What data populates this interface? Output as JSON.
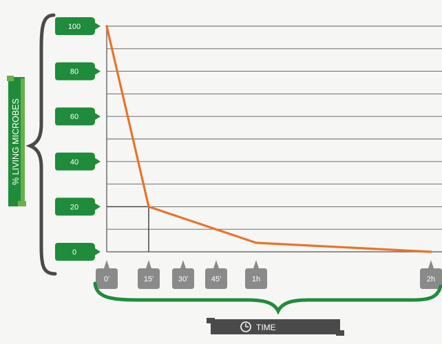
{
  "chart_data": {
    "type": "line",
    "xlabel": "TIME",
    "ylabel": "% LIVING MICROBES",
    "y_ticks": [
      "100",
      "80",
      "60",
      "40",
      "20",
      "0"
    ],
    "x_ticks": [
      "0'",
      "15'",
      "30'",
      "45'",
      "1h",
      "2h"
    ],
    "x_tick_minutes": [
      0,
      15,
      30,
      45,
      60,
      120
    ],
    "ylim": [
      0,
      100
    ],
    "xlim": [
      0,
      120
    ],
    "grid": true,
    "series": [
      {
        "x": [
          0,
          15,
          60,
          120
        ],
        "y": [
          100,
          20,
          4,
          0
        ],
        "color": "#e8732a"
      }
    ],
    "annotations": [
      {
        "type": "guide-lines",
        "x": 15,
        "y": 20
      }
    ]
  },
  "colors": {
    "green_tag": "#1e8c3a",
    "grey_tag": "#8a8a8a",
    "dark_bar": "#4a4a4a",
    "line": "#e8732a",
    "brace_dark": "#4a4a4a",
    "brace_green": "#1e8c3a"
  },
  "icons": {
    "time": "clock-icon"
  }
}
